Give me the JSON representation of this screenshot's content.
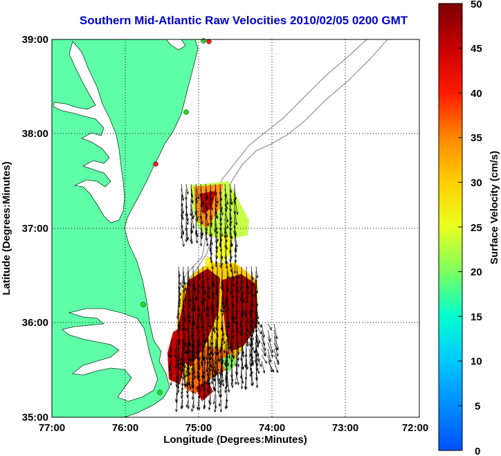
{
  "map": {
    "title": "Southern Mid-Atlantic Raw Velocities 2010/02/05 0200 GMT",
    "xlabel": "Longitude (Degrees:Minutes)",
    "ylabel": "Latitude (Degrees:Minutes)",
    "x_ticks": [
      "77:00",
      "76:00",
      "75:00",
      "74:00",
      "73:00",
      "72:00"
    ],
    "y_ticks": [
      "39:00",
      "38:00",
      "37:00",
      "36:00",
      "35:00"
    ],
    "colors": {
      "land": "#5effa8",
      "water": "#ffffff",
      "bathymetry": "#999999",
      "station_active": "#22dd22",
      "station_inactive": "#ee2222"
    }
  },
  "colorbar": {
    "label": "Surface Velocity (cm/s)",
    "ticks": [
      "50",
      "45",
      "40",
      "35",
      "30",
      "25",
      "20",
      "15",
      "10",
      "5",
      "0"
    ],
    "min": 0,
    "max": 50
  }
}
